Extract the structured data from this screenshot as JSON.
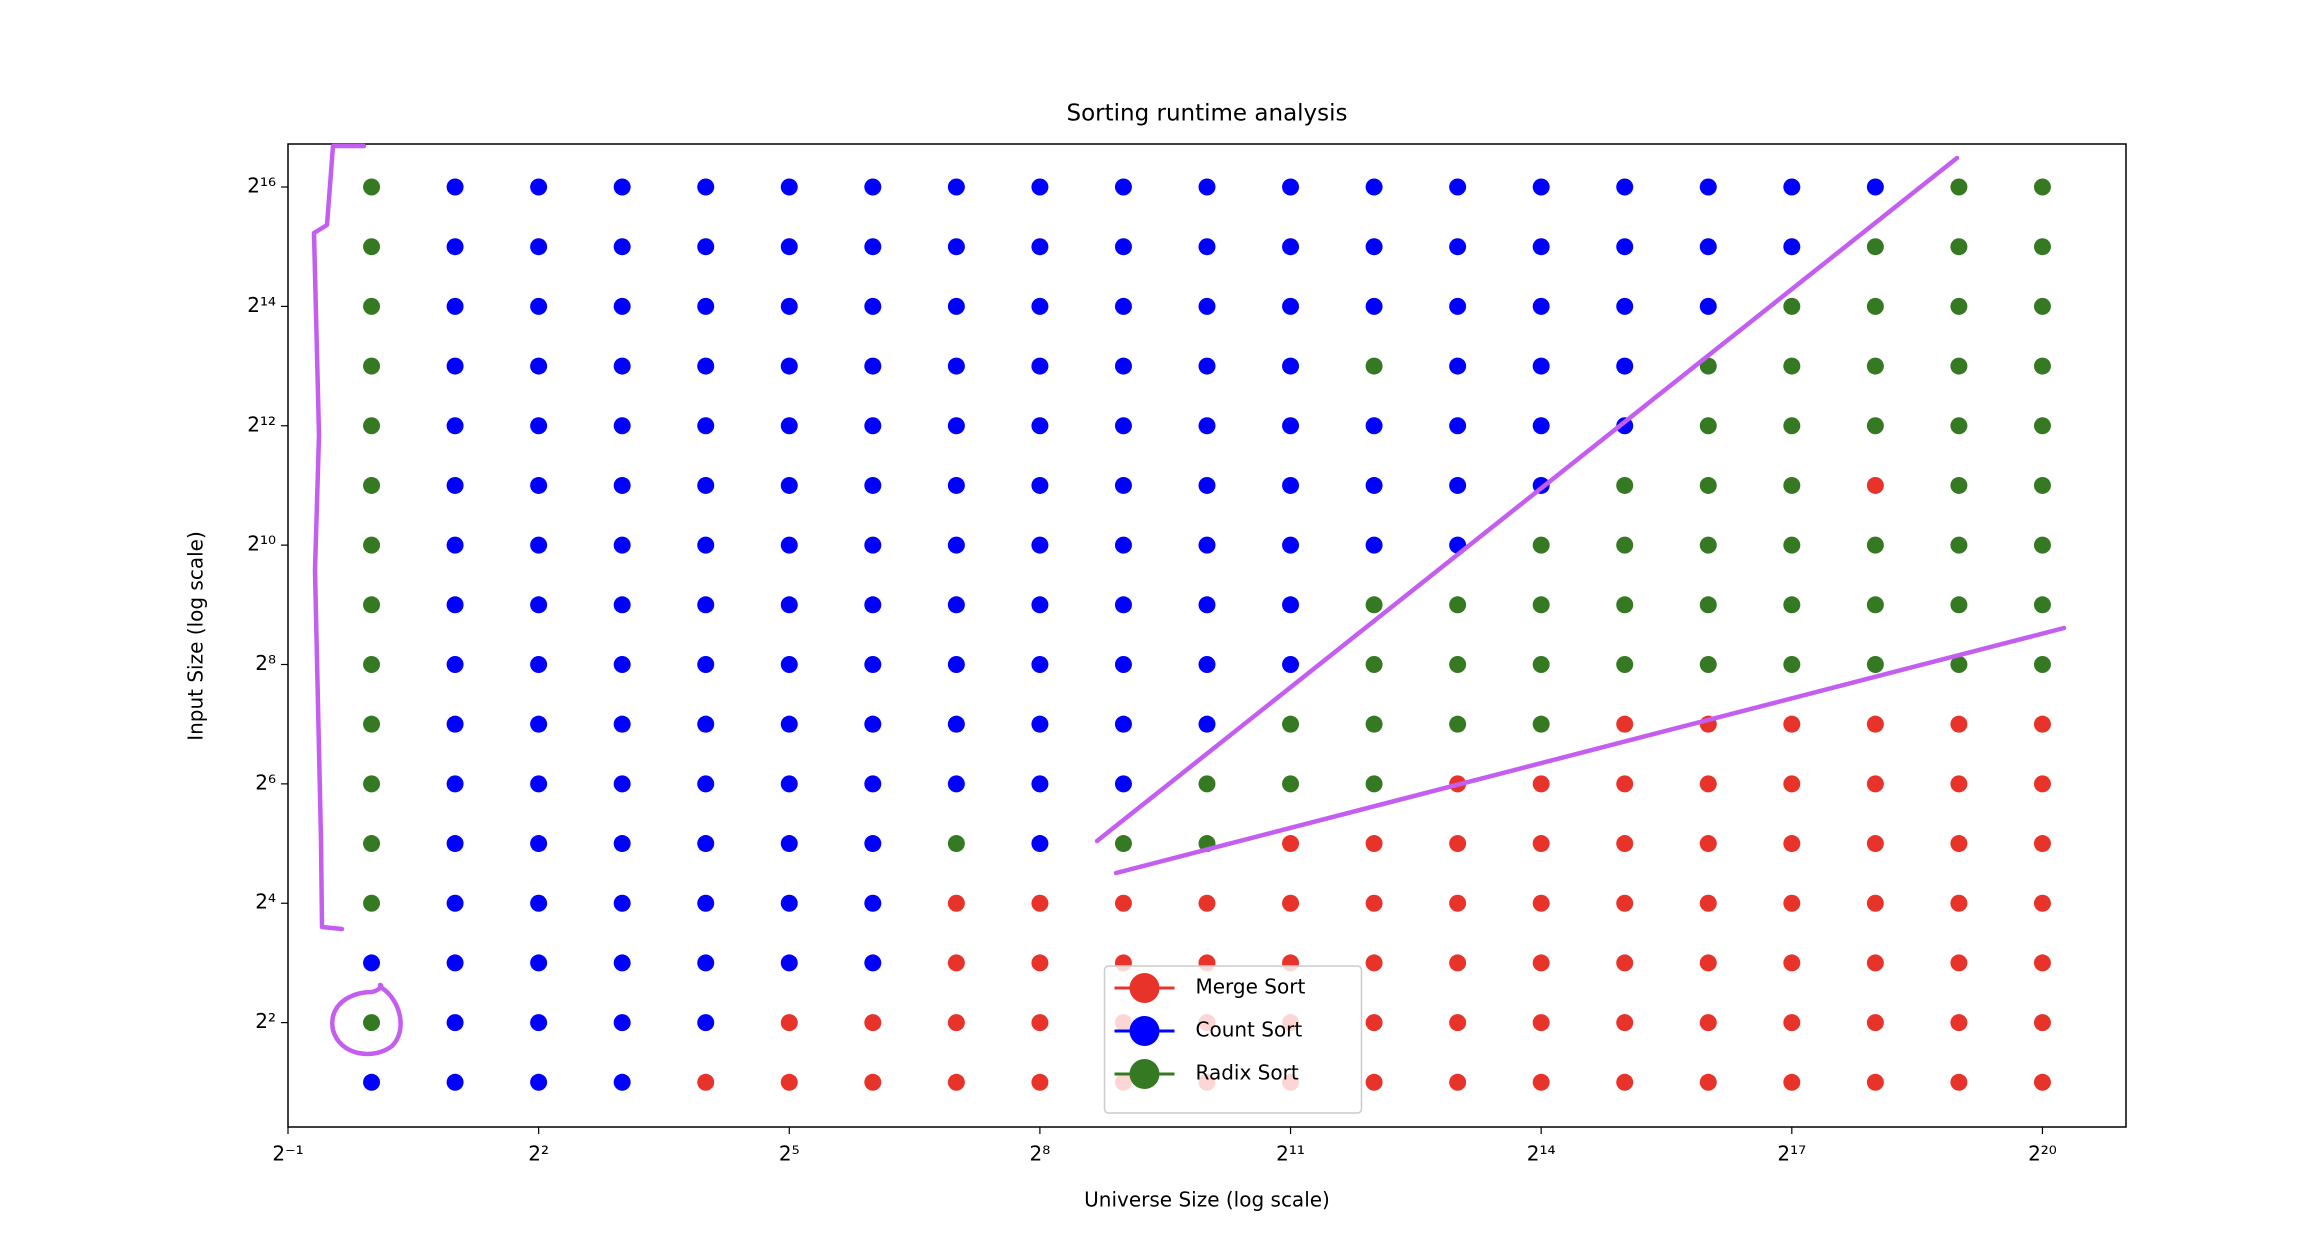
{
  "chart_data": {
    "type": "scatter",
    "title": "Sorting runtime analysis",
    "x_label": "Universe Size (log scale)",
    "y_label": "Input Size (log scale)",
    "xscale": "log2",
    "yscale": "log2",
    "grid": false,
    "legend": "lower center",
    "xlim": [
      0.5,
      2097152
    ],
    "ylim": [
      1.19,
      108000
    ],
    "xticks": [
      {
        "value": 0.5,
        "label": "2⁻¹"
      },
      {
        "value": 4,
        "label": "2²"
      },
      {
        "value": 32,
        "label": "2⁵"
      },
      {
        "value": 256,
        "label": "2⁸"
      },
      {
        "value": 2048,
        "label": "2¹¹"
      },
      {
        "value": 16384,
        "label": "2¹⁴"
      },
      {
        "value": 131072,
        "label": "2¹⁷"
      },
      {
        "value": 1048576,
        "label": "2²⁰"
      }
    ],
    "yticks": [
      {
        "value": 4,
        "label": "2²"
      },
      {
        "value": 16,
        "label": "2⁴"
      },
      {
        "value": 64,
        "label": "2⁶"
      },
      {
        "value": 256,
        "label": "2⁸"
      },
      {
        "value": 1024,
        "label": "2¹⁰"
      },
      {
        "value": 4096,
        "label": "2¹²"
      },
      {
        "value": 16384,
        "label": "2¹⁴"
      },
      {
        "value": 65536,
        "label": "2¹⁶"
      }
    ],
    "series": [
      {
        "name": "Merge Sort",
        "color": "#e8332a",
        "x": [
          16,
          32,
          64,
          128,
          256,
          512,
          1024,
          2048,
          4096,
          8192,
          16384,
          32768,
          65536,
          131072,
          262144,
          524288,
          1048576,
          32,
          64,
          128,
          256,
          512,
          1024,
          2048,
          4096,
          8192,
          16384,
          32768,
          65536,
          131072,
          262144,
          524288,
          1048576,
          128,
          256,
          512,
          1024,
          2048,
          4096,
          8192,
          16384,
          32768,
          65536,
          131072,
          262144,
          524288,
          1048576,
          128,
          256,
          512,
          1024,
          2048,
          4096,
          8192,
          16384,
          32768,
          65536,
          131072,
          262144,
          524288,
          1048576,
          2048,
          4096,
          8192,
          16384,
          32768,
          65536,
          131072,
          262144,
          524288,
          1048576,
          8192,
          16384,
          32768,
          65536,
          131072,
          262144,
          524288,
          1048576,
          32768,
          65536,
          131072,
          262144,
          524288,
          1048576,
          262144
        ],
        "y": [
          2,
          2,
          2,
          2,
          2,
          2,
          2,
          2,
          2,
          2,
          2,
          2,
          2,
          2,
          2,
          2,
          2,
          4,
          4,
          4,
          4,
          4,
          4,
          4,
          4,
          4,
          4,
          4,
          4,
          4,
          4,
          4,
          4,
          8,
          8,
          8,
          8,
          8,
          8,
          8,
          8,
          8,
          8,
          8,
          8,
          8,
          8,
          16,
          16,
          16,
          16,
          16,
          16,
          16,
          16,
          16,
          16,
          16,
          16,
          16,
          16,
          32,
          32,
          32,
          32,
          32,
          32,
          32,
          32,
          32,
          32,
          64,
          64,
          64,
          64,
          64,
          64,
          64,
          64,
          128,
          128,
          128,
          128,
          128,
          128,
          2048
        ]
      },
      {
        "name": "Count Sort",
        "color": "#0000ff",
        "x": [
          1,
          2,
          4,
          8,
          2,
          4,
          8,
          16,
          1,
          2,
          4,
          8,
          16,
          32,
          64,
          2,
          4,
          8,
          16,
          32,
          64,
          2,
          4,
          8,
          16,
          32,
          64,
          256,
          2,
          4,
          8,
          16,
          32,
          64,
          128,
          256,
          512,
          2,
          4,
          8,
          16,
          32,
          64,
          128,
          256,
          512,
          1024,
          2,
          4,
          8,
          16,
          32,
          64,
          128,
          256,
          512,
          1024,
          2048,
          2,
          4,
          8,
          16,
          32,
          64,
          128,
          256,
          512,
          1024,
          2048,
          2,
          4,
          8,
          16,
          32,
          64,
          128,
          256,
          512,
          1024,
          2048,
          4096,
          8192,
          2,
          4,
          8,
          16,
          32,
          64,
          128,
          256,
          512,
          1024,
          2048,
          4096,
          8192,
          16384,
          2,
          4,
          8,
          16,
          32,
          64,
          128,
          256,
          512,
          1024,
          2048,
          4096,
          8192,
          16384,
          32768,
          2,
          4,
          8,
          16,
          32,
          64,
          128,
          256,
          512,
          1024,
          2048,
          8192,
          16384,
          32768,
          2,
          4,
          8,
          16,
          32,
          64,
          128,
          256,
          512,
          1024,
          2048,
          4096,
          8192,
          16384,
          32768,
          65536,
          2,
          4,
          8,
          16,
          32,
          64,
          128,
          256,
          512,
          1024,
          2048,
          4096,
          8192,
          16384,
          32768,
          65536,
          131072,
          2,
          4,
          8,
          16,
          32,
          64,
          128,
          256,
          512,
          1024,
          2048,
          4096,
          8192,
          16384,
          32768,
          65536,
          131072,
          262144
        ],
        "y": [
          2,
          2,
          2,
          2,
          4,
          4,
          4,
          4,
          8,
          8,
          8,
          8,
          8,
          8,
          8,
          16,
          16,
          16,
          16,
          16,
          16,
          32,
          32,
          32,
          32,
          32,
          32,
          32,
          64,
          64,
          64,
          64,
          64,
          64,
          64,
          64,
          64,
          128,
          128,
          128,
          128,
          128,
          128,
          128,
          128,
          128,
          128,
          256,
          256,
          256,
          256,
          256,
          256,
          256,
          256,
          256,
          256,
          256,
          512,
          512,
          512,
          512,
          512,
          512,
          512,
          512,
          512,
          512,
          512,
          1024,
          1024,
          1024,
          1024,
          1024,
          1024,
          1024,
          1024,
          1024,
          1024,
          1024,
          1024,
          1024,
          2048,
          2048,
          2048,
          2048,
          2048,
          2048,
          2048,
          2048,
          2048,
          2048,
          2048,
          2048,
          2048,
          2048,
          4096,
          4096,
          4096,
          4096,
          4096,
          4096,
          4096,
          4096,
          4096,
          4096,
          4096,
          4096,
          4096,
          4096,
          4096,
          8192,
          8192,
          8192,
          8192,
          8192,
          8192,
          8192,
          8192,
          8192,
          8192,
          8192,
          8192,
          8192,
          8192,
          16384,
          16384,
          16384,
          16384,
          16384,
          16384,
          16384,
          16384,
          16384,
          16384,
          16384,
          16384,
          16384,
          16384,
          16384,
          16384,
          32768,
          32768,
          32768,
          32768,
          32768,
          32768,
          32768,
          32768,
          32768,
          32768,
          32768,
          32768,
          32768,
          32768,
          32768,
          32768,
          32768,
          65536,
          65536,
          65536,
          65536,
          65536,
          65536,
          65536,
          65536,
          65536,
          65536,
          65536,
          65536,
          65536,
          65536,
          65536,
          65536,
          65536,
          65536
        ]
      },
      {
        "name": "Radix Sort",
        "color": "#357a22",
        "x": [
          1,
          1,
          1,
          128,
          512,
          1024,
          1,
          1024,
          2048,
          4096,
          1,
          2048,
          4096,
          8192,
          16384,
          1,
          4096,
          8192,
          16384,
          32768,
          65536,
          131072,
          262144,
          524288,
          1048576,
          1,
          4096,
          8192,
          16384,
          32768,
          65536,
          131072,
          262144,
          524288,
          1048576,
          1,
          16384,
          32768,
          65536,
          131072,
          262144,
          524288,
          1048576,
          1,
          32768,
          65536,
          131072,
          524288,
          1048576,
          1,
          65536,
          131072,
          262144,
          524288,
          1048576,
          1,
          4096,
          65536,
          131072,
          262144,
          524288,
          1048576,
          1,
          131072,
          262144,
          524288,
          1048576,
          1,
          262144,
          524288,
          1048576,
          1,
          524288,
          1048576
        ],
        "y": [
          4,
          16,
          32,
          32,
          32,
          32,
          64,
          64,
          64,
          64,
          128,
          128,
          128,
          128,
          128,
          256,
          256,
          256,
          256,
          256,
          256,
          256,
          256,
          256,
          256,
          512,
          512,
          512,
          512,
          512,
          512,
          512,
          512,
          512,
          512,
          1024,
          1024,
          1024,
          1024,
          1024,
          1024,
          1024,
          1024,
          2048,
          2048,
          2048,
          2048,
          2048,
          2048,
          4096,
          4096,
          4096,
          4096,
          4096,
          4096,
          8192,
          8192,
          8192,
          8192,
          8192,
          8192,
          8192,
          16384,
          16384,
          16384,
          16384,
          16384,
          32768,
          32768,
          32768,
          32768,
          65536,
          65536,
          65536
        ]
      }
    ]
  }
}
